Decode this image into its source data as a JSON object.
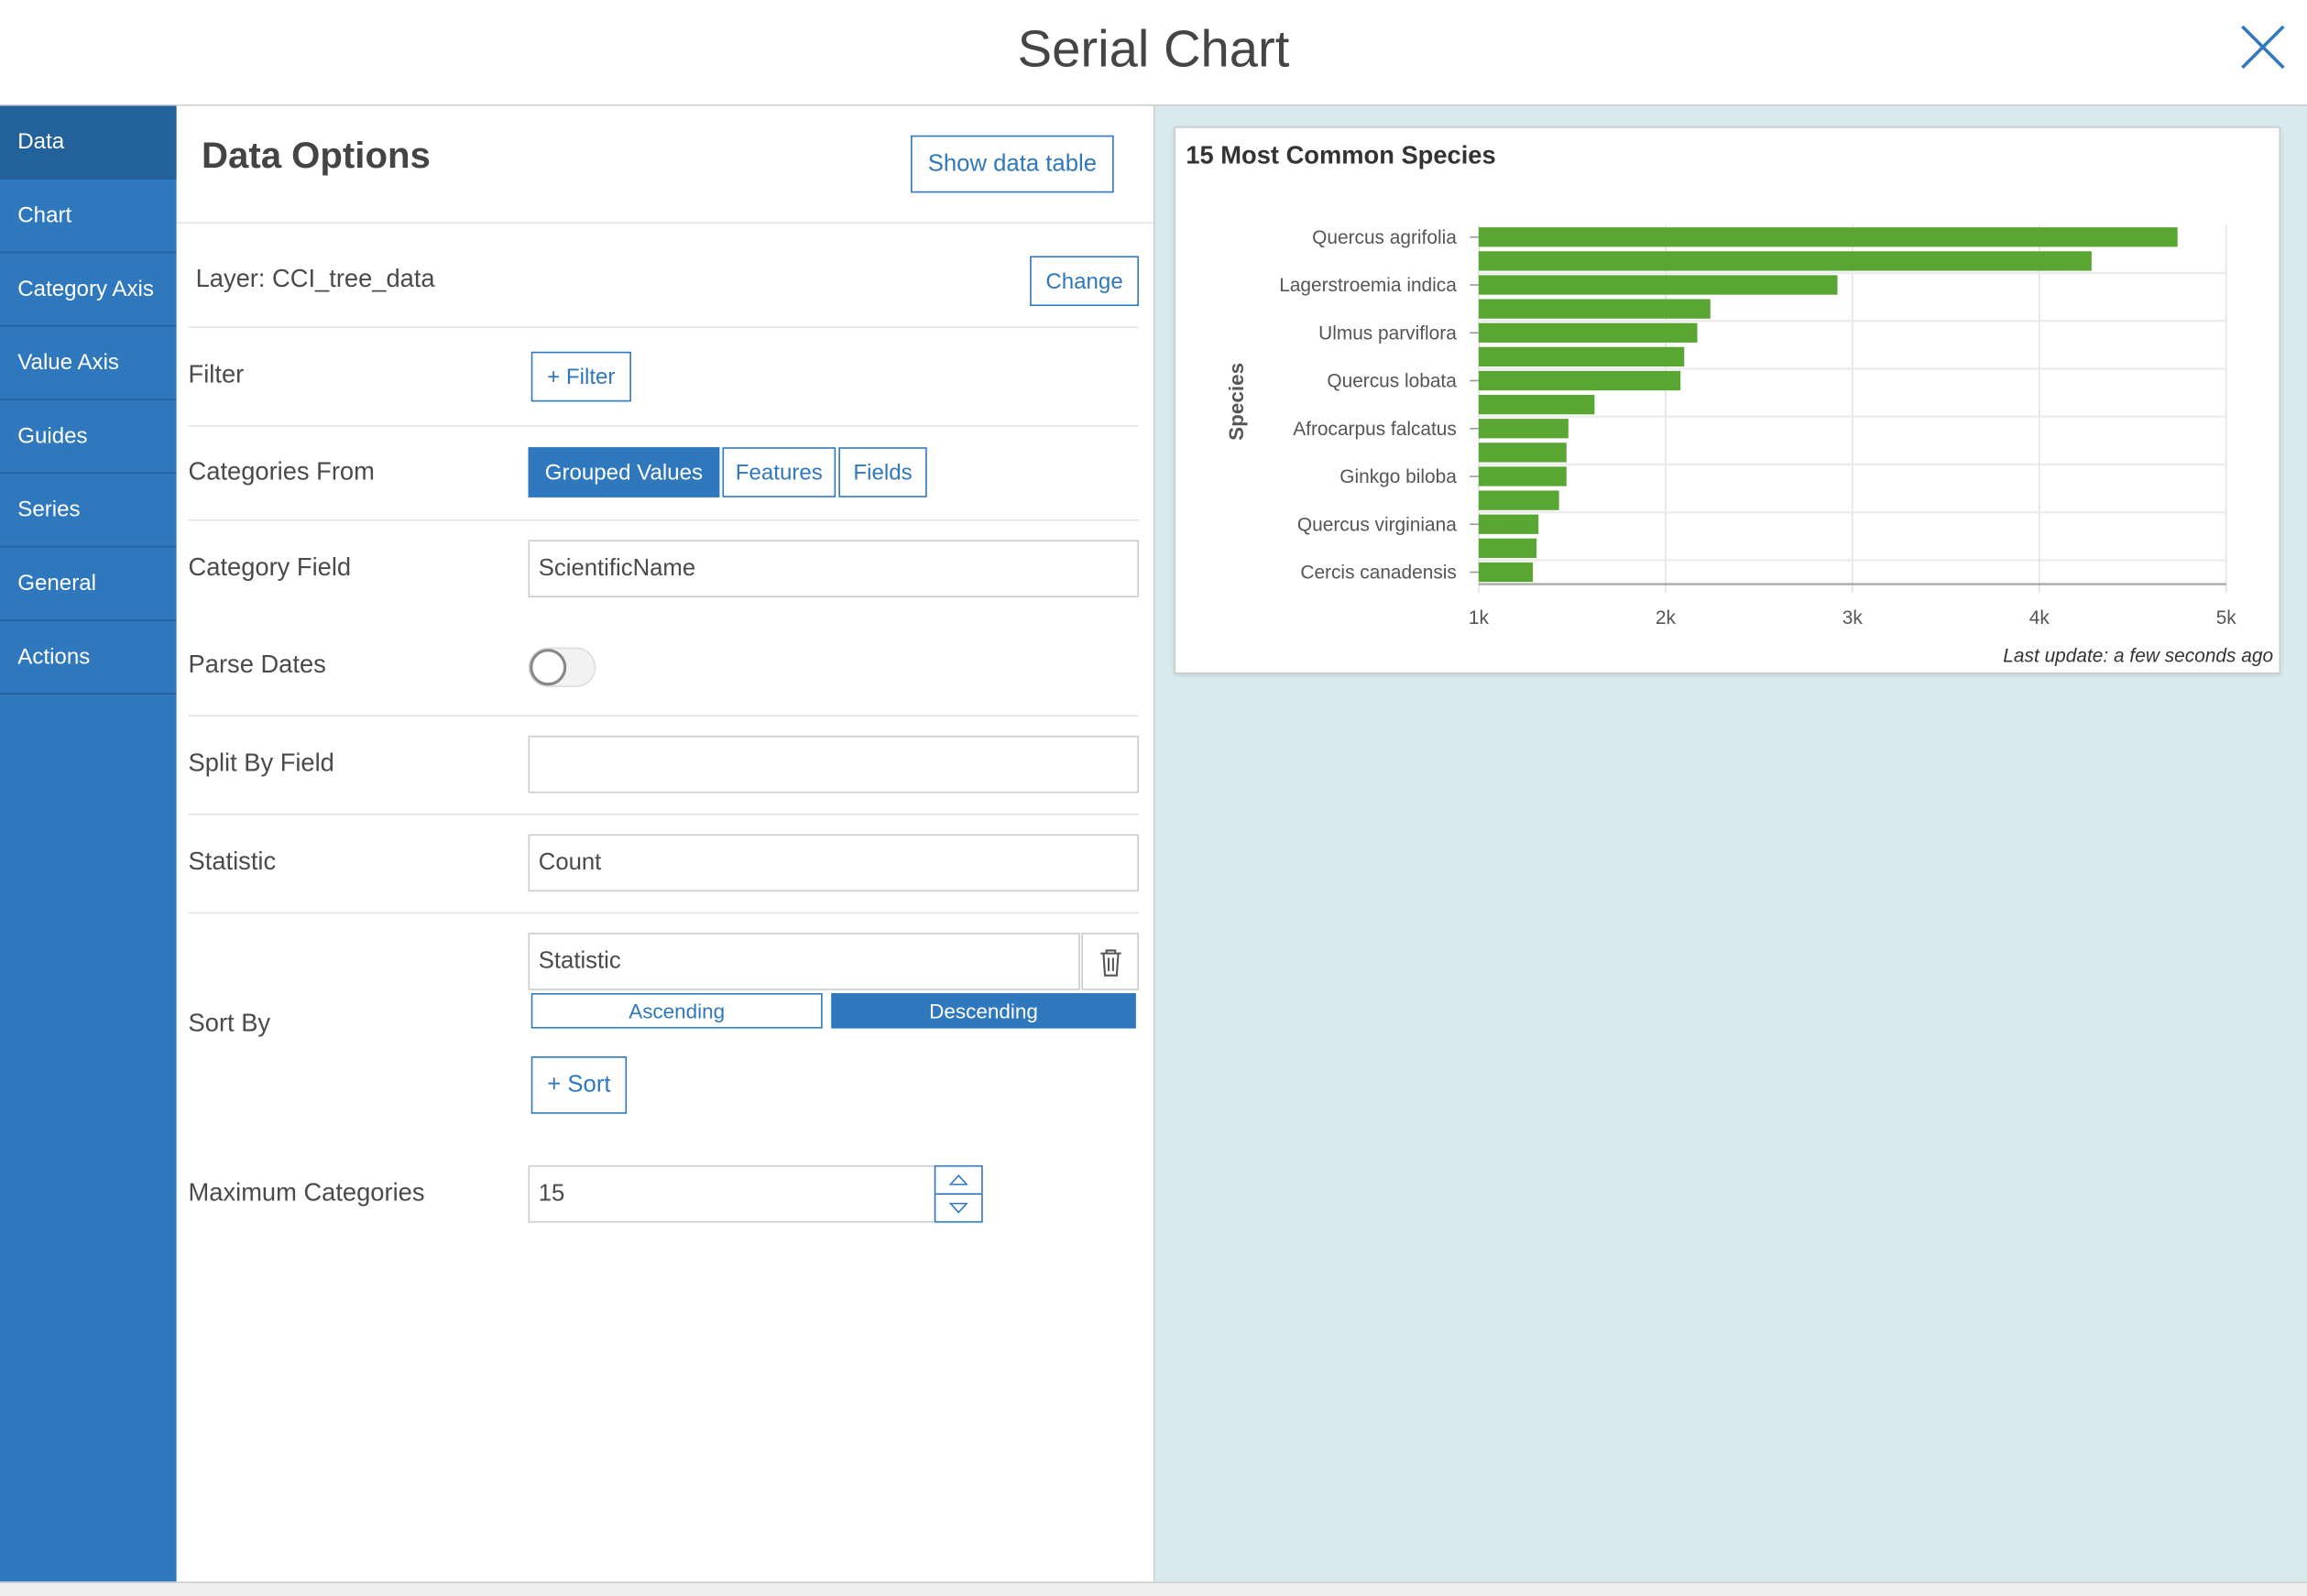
{
  "header": {
    "title": "Serial Chart",
    "close_icon": "close-icon"
  },
  "sidebar": {
    "items": [
      {
        "label": "Data",
        "active": true
      },
      {
        "label": "Chart"
      },
      {
        "label": "Category Axis"
      },
      {
        "label": "Value Axis"
      },
      {
        "label": "Guides"
      },
      {
        "label": "Series"
      },
      {
        "label": "General"
      },
      {
        "label": "Actions"
      }
    ]
  },
  "panel": {
    "heading": "Data Options",
    "show_table": "Show data table",
    "layer": "Layer: CCI_tree_data",
    "change": "Change",
    "filter_label": "Filter",
    "filter_button": "+ Filter",
    "categories_from_label": "Categories From",
    "categories_from_options": [
      "Grouped Values",
      "Features",
      "Fields"
    ],
    "categories_from_selected": "Grouped Values",
    "category_field_label": "Category Field",
    "category_field_value": "ScientificName",
    "parse_dates_label": "Parse Dates",
    "parse_dates_on": false,
    "split_by_label": "Split By Field",
    "split_by_value": "",
    "statistic_label": "Statistic",
    "statistic_value": "Count",
    "sort_by_label": "Sort By",
    "sort_by_value": "Statistic",
    "ascending": "Ascending",
    "descending": "Descending",
    "sort_order": "Descending",
    "add_sort": "+ Sort",
    "max_categories_label": "Maximum Categories",
    "max_categories_value": "15"
  },
  "colors": {
    "accent": "#2f78bd",
    "bar": "#5aa632",
    "panel_bg": "#d9eaee"
  },
  "chart_data": {
    "type": "bar",
    "orientation": "horizontal",
    "title": "15 Most Common Species",
    "ylabel": "Species",
    "xlabel": "",
    "categories": [
      "Quercus agrifolia",
      "",
      "Lagerstroemia indica",
      "",
      "Ulmus parviflora",
      "",
      "Quercus lobata",
      "",
      "Afrocarpus falcatus",
      "",
      "Ginkgo biloba",
      "",
      "Quercus virginiana",
      "",
      "Cercis canadensis"
    ],
    "values": [
      4740,
      4280,
      2920,
      2240,
      2170,
      2100,
      2080,
      1620,
      1480,
      1470,
      1470,
      1430,
      1320,
      1310,
      1290
    ],
    "xlim": [
      1000,
      5000
    ],
    "xticks": [
      "1k",
      "2k",
      "3k",
      "4k",
      "5k"
    ],
    "grid": true,
    "footer": "Last update: a few seconds ago"
  }
}
